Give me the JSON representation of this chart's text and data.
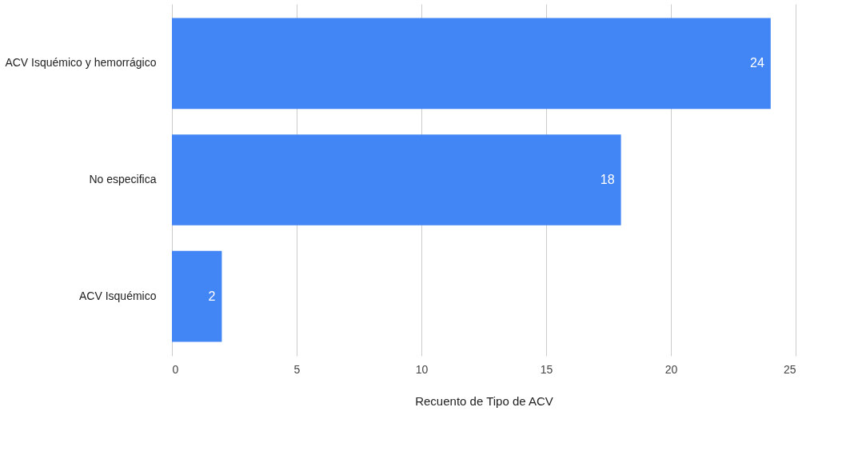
{
  "chart_data": {
    "type": "bar",
    "orientation": "horizontal",
    "xlabel": "Recuento de Tipo de ACV",
    "categories": [
      "ACV Isquémico y hemorrágico",
      "No especifica",
      "ACV Isquémico"
    ],
    "values": [
      24,
      18,
      2
    ],
    "color": "#4285f4",
    "xlim": [
      0,
      25
    ],
    "xticks": [
      0,
      5,
      10,
      15,
      20,
      25
    ],
    "grid": "x",
    "data_labels": true
  }
}
